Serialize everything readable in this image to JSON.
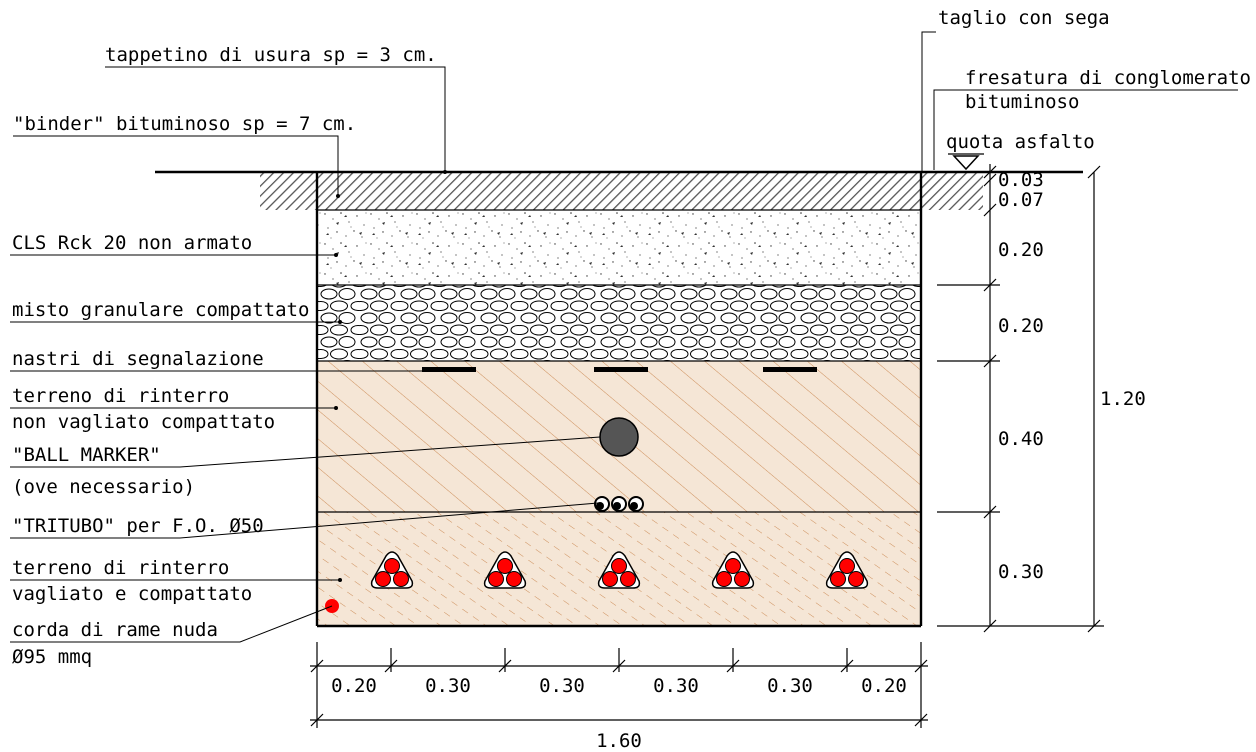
{
  "labels": {
    "taglio": "taglio con sega",
    "tappetino": "tappetino di usura sp = 3 cm.",
    "fresatura_1": "fresatura di conglomerato",
    "fresatura_2": "bituminoso",
    "binder": "\"binder\" bituminoso sp = 7 cm.",
    "quota": "quota asfalto",
    "cls": "CLS Rck 20 non armato",
    "misto": "misto granulare compattato",
    "nastri": "nastri di segnalazione",
    "rinterro1_1": "terreno di rinterro",
    "rinterro1_2": "non vagliato compattato",
    "ball_1": "\"BALL MARKER\"",
    "ball_2": "(ove necessario)",
    "tritubo": "\"TRITUBO\" per F.O. Ø50",
    "rinterro2_1": "terreno di rinterro",
    "rinterro2_2": "vagliato e compattato",
    "corda_1": "corda di rame nuda",
    "corda_2": "Ø95 mmq"
  },
  "vertical_dims": {
    "d003": "0.03",
    "d007": "0.07",
    "d020a": "0.20",
    "d020b": "0.20",
    "d040": "0.40",
    "d030": "0.30",
    "total": "1.20"
  },
  "horizontal_dims": [
    "0.20",
    "0.30",
    "0.30",
    "0.30",
    "0.30",
    "0.20"
  ],
  "horizontal_total": "1.60",
  "colors": {
    "soil_fill": "#f5e6d6",
    "soil_hatch": "#cd8e5a",
    "cable_red": "#ff0000",
    "asphalt_hatch": "#555555"
  },
  "icons": {
    "cable_bundle": "three-core-cable-icon",
    "ball_marker": "ball-marker-icon",
    "tritubo": "tritubo-icon",
    "copper_rope": "copper-rope-icon",
    "level_marker": "level-triangle-icon"
  }
}
